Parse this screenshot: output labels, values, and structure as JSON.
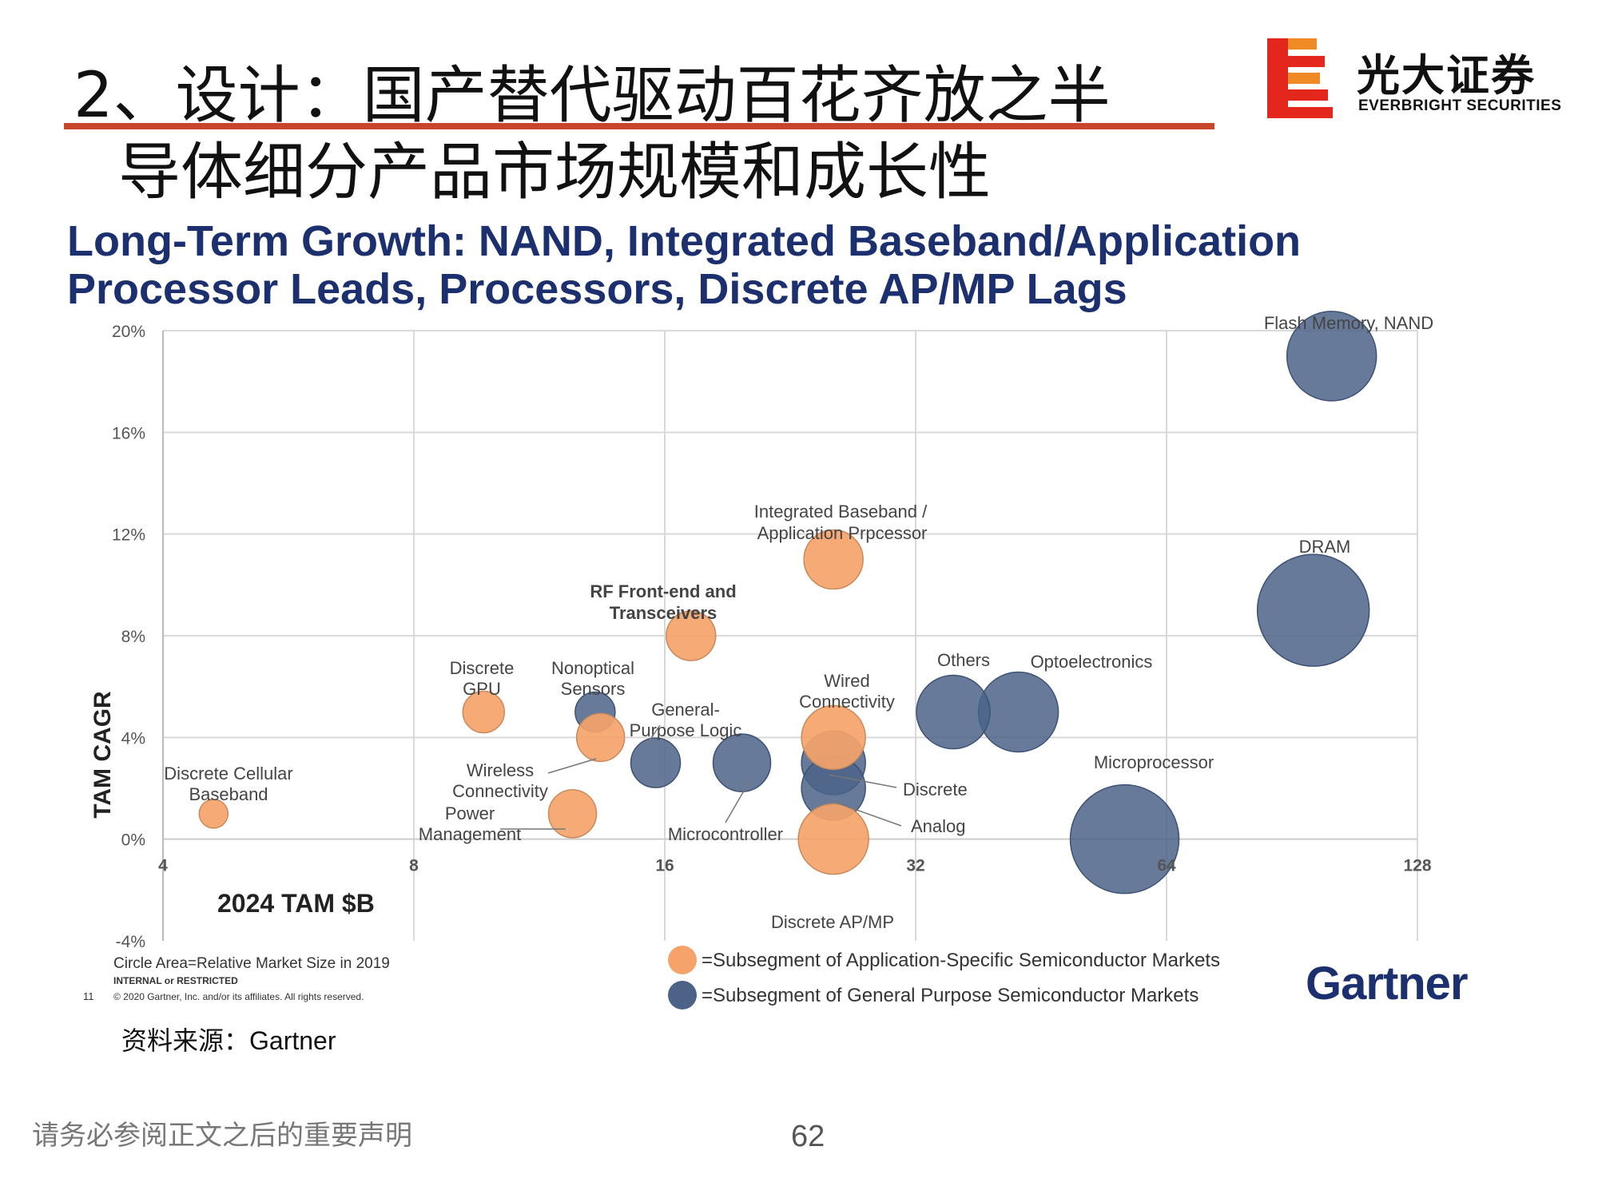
{
  "slide": {
    "title_line1": "2、设计：国产替代驱动百花齐放之半",
    "title_line2": "导体细分产品市场规模和成长性",
    "logo_cn": "光大证券",
    "logo_en": "EVERBRIGHT SECURITIES",
    "source": "资料来源：Gartner",
    "disclaimer": "请务必参阅正文之后的重要声明",
    "page_number": "62",
    "brand": "Gartner"
  },
  "colors": {
    "title_rule": "#c8442a",
    "asic": "#f5a36a",
    "general": "#4c6387",
    "heading": "#1c2f6e",
    "grid": "#d9d9d9"
  },
  "chart_data": {
    "type": "bubble",
    "title": "Long-Term Growth: NAND, Integrated Baseband/Application Processor Leads, Processors, Discrete AP/MP Lags",
    "xlabel": "2024 TAM $B",
    "ylabel": "TAM CAGR",
    "x_scale": "log2",
    "xlim": [
      4,
      128
    ],
    "ylim": [
      -4,
      20
    ],
    "x_ticks": [
      "4",
      "8",
      "16",
      "32",
      "64",
      "128"
    ],
    "y_ticks": [
      "-4%",
      "0%",
      "4%",
      "8%",
      "12%",
      "16%",
      "20%"
    ],
    "y_tick_values": [
      -4,
      0,
      4,
      8,
      12,
      16,
      20
    ],
    "x_tick_values": [
      4,
      8,
      16,
      32,
      64,
      128
    ],
    "size_note": "Circle Area=Relative Market Size in 2019",
    "legend": [
      {
        "group": "asic",
        "label": "=Subsegment of Application-Specific Semiconductor Markets"
      },
      {
        "group": "general",
        "label": "=Subsegment of General Purpose Semiconductor Markets"
      }
    ],
    "footnote_1": "INTERNAL or RESTRICTED",
    "footnote_2": "© 2020 Gartner, Inc. and/or its affiliates. All rights reserved.",
    "footnote_num": "11",
    "points": [
      {
        "label": "Flash Memory, NAND",
        "x": 101,
        "y": 19,
        "size": 56,
        "group": "general"
      },
      {
        "label": "DRAM",
        "x": 96,
        "y": 9,
        "size": 70,
        "group": "general"
      },
      {
        "label": "Microprocessor",
        "x": 57,
        "y": 0,
        "size": 68,
        "group": "general"
      },
      {
        "label": "Optoelectronics",
        "x": 42.5,
        "y": 5,
        "size": 50,
        "group": "general"
      },
      {
        "label": "Others",
        "x": 35.5,
        "y": 5,
        "size": 46,
        "group": "general"
      },
      {
        "label": "Discrete",
        "x": 25.5,
        "y": 3,
        "size": 40,
        "group": "general"
      },
      {
        "label": "Analog",
        "x": 25.5,
        "y": 2,
        "size": 40,
        "group": "general"
      },
      {
        "label": "Microcontroller",
        "x": 19.8,
        "y": 3,
        "size": 36,
        "group": "general"
      },
      {
        "label": "General-Purpose Logic",
        "x": 15.6,
        "y": 3,
        "size": 31,
        "group": "general"
      },
      {
        "label": "Nonoptical Sensors",
        "x": 13.2,
        "y": 5,
        "size": 25,
        "group": "general"
      },
      {
        "label": "Integrated Baseband / Application Prpcessor",
        "x": 25.5,
        "y": 11,
        "size": 37,
        "group": "asic"
      },
      {
        "label": "RF Front-end and Transceivers",
        "x": 17.2,
        "y": 8,
        "size": 31,
        "group": "asic"
      },
      {
        "label": "Discrete GPU",
        "x": 9.7,
        "y": 5,
        "size": 26,
        "group": "asic"
      },
      {
        "label": "Wireless Connectivity",
        "x": 13.4,
        "y": 4,
        "size": 30,
        "group": "asic"
      },
      {
        "label": "Power Management",
        "x": 12.4,
        "y": 1,
        "size": 30,
        "group": "asic"
      },
      {
        "label": "Discrete Cellular Baseband",
        "x": 4.6,
        "y": 1,
        "size": 18,
        "group": "asic"
      },
      {
        "label": "Wired Connectivity",
        "x": 25.5,
        "y": 4,
        "size": 40,
        "group": "asic"
      },
      {
        "label": "Discrete AP/MP",
        "x": 25.5,
        "y": 0,
        "size": 44,
        "group": "asic"
      }
    ]
  }
}
